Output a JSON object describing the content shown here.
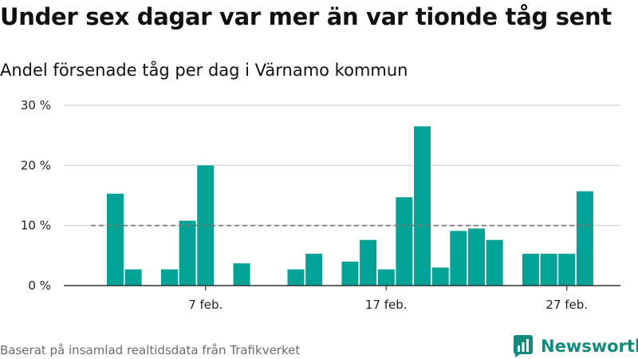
{
  "title": "Under sex dagar var mer än var tionde tåg sent",
  "subtitle": "Andel försenade tåg per dag i Värnamo kommun",
  "source": "Baserat på insamlad realtidsdata från Trafikverket",
  "brand": "Newsworthy",
  "colors": {
    "bar": "#00a396",
    "grid": "#dcdcdc",
    "reference": "#777777",
    "axis": "#333333",
    "brand": "#138a7e"
  },
  "icons": {
    "brand_logo": "bar-chart-icon"
  },
  "chart_data": {
    "type": "bar",
    "x": [
      "2 feb.",
      "3 feb.",
      "4 feb.",
      "5 feb.",
      "6 feb.",
      "7 feb.",
      "8 feb.",
      "9 feb.",
      "10 feb.",
      "11 feb.",
      "12 feb.",
      "13 feb.",
      "14 feb.",
      "15 feb.",
      "16 feb.",
      "17 feb.",
      "18 feb.",
      "19 feb.",
      "20 feb.",
      "21 feb.",
      "22 feb.",
      "23 feb.",
      "24 feb.",
      "25 feb.",
      "26 feb.",
      "27 feb.",
      "28 feb."
    ],
    "values": [
      15.3,
      2.7,
      null,
      2.7,
      10.8,
      20.0,
      null,
      3.7,
      null,
      null,
      2.7,
      5.3,
      null,
      4.0,
      7.6,
      2.7,
      14.7,
      26.5,
      3.0,
      9.1,
      9.5,
      7.6,
      null,
      5.3,
      5.3,
      5.3,
      15.7
    ],
    "xticks": [
      "7 feb.",
      "17 feb.",
      "27 feb."
    ],
    "yticks": [
      0,
      10,
      20,
      30
    ],
    "ytick_labels": [
      "0 %",
      "10 %",
      "20 %",
      "30 %"
    ],
    "ylim": [
      0,
      30
    ],
    "reference_line": 10,
    "grid": true
  }
}
